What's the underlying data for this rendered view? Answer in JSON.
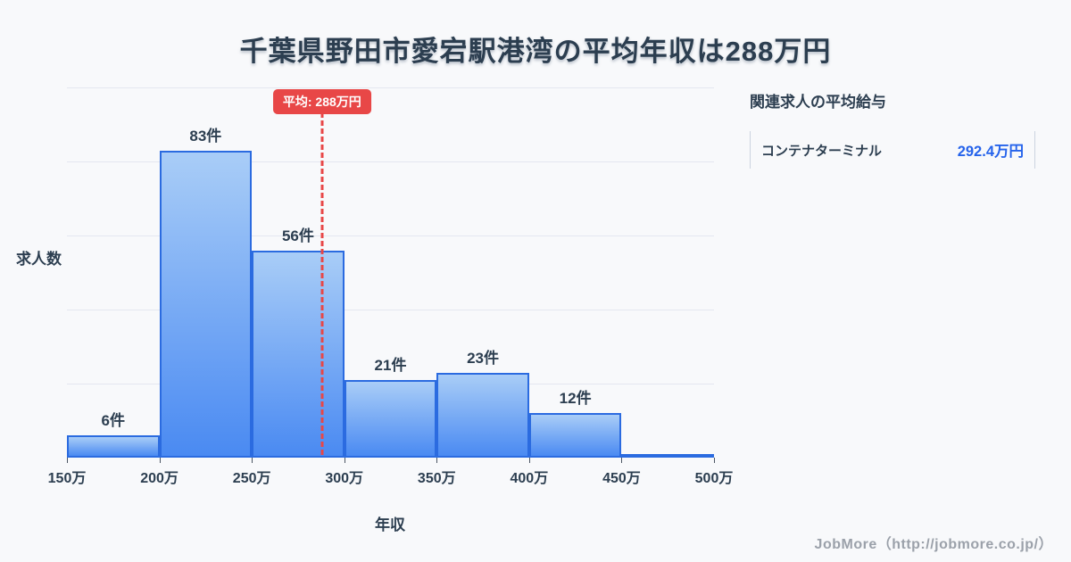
{
  "title": "千葉県野田市愛宕駅港湾の平均年収は288万円",
  "chart_data": {
    "type": "bar",
    "subtype": "histogram",
    "bin_edges_man": [
      150,
      200,
      250,
      300,
      350,
      400,
      450,
      500
    ],
    "x_tick_labels": [
      "150万",
      "200万",
      "250万",
      "300万",
      "350万",
      "400万",
      "450万",
      "500万"
    ],
    "values": [
      6,
      83,
      56,
      21,
      23,
      12,
      1
    ],
    "bar_labels": [
      "6件",
      "83件",
      "56件",
      "21件",
      "23件",
      "12件",
      ""
    ],
    "mean_man": 288,
    "mean_label": "平均: 288万円",
    "xlabel": "年収",
    "ylabel": "求人数",
    "ylim": [
      0,
      100
    ],
    "grid": true,
    "gridline_count": 5,
    "legend": "none"
  },
  "side_panel": {
    "heading": "関連求人の平均給与",
    "rows": [
      {
        "label": "コンテナターミナル",
        "value": "292.4万円"
      }
    ]
  },
  "footer": {
    "credit": "JobMore（http://jobmore.co.jp/）"
  },
  "colors": {
    "bg": "#f8f9fb",
    "text": "#2c3e50",
    "grid": "#e4e7f0",
    "barTop": "#a9cdf7",
    "barBottom": "#4a8af2",
    "barBorder": "#2b6be0",
    "red": "#e84747",
    "accent": "#2563eb",
    "footer": "#9ba1aa"
  }
}
